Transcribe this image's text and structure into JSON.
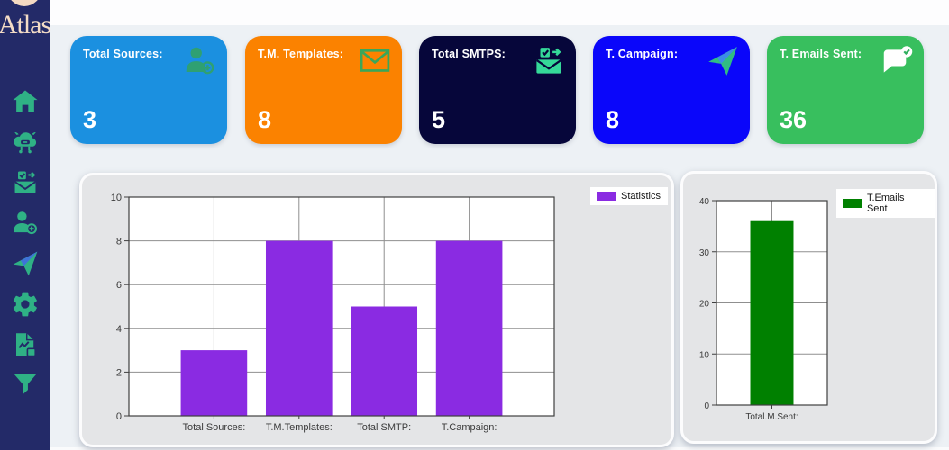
{
  "window": {
    "background": "#edf1f5",
    "topbar_color": "#fdfdfe"
  },
  "sidebar": {
    "brand": "Atlas",
    "background": "#232a68",
    "icon_color": "#2fb185",
    "items": [
      {
        "id": "home",
        "icon": "home-icon"
      },
      {
        "id": "bot",
        "icon": "bot-icon"
      },
      {
        "id": "mail-templates",
        "icon": "mail-check-icon"
      },
      {
        "id": "add-source",
        "icon": "user-add-icon"
      },
      {
        "id": "campaign",
        "icon": "paper-plane-icon"
      },
      {
        "id": "settings",
        "icon": "gear-icon"
      },
      {
        "id": "reports",
        "icon": "report-icon"
      },
      {
        "id": "filter",
        "icon": "funnel-icon"
      }
    ]
  },
  "cards": [
    {
      "label": "Total Sources:",
      "value": "3",
      "color": "#1b90e0",
      "icon": "user-add-icon"
    },
    {
      "label": "T.M. Templates:",
      "value": "8",
      "color": "#fb8200",
      "icon": "envelope-icon"
    },
    {
      "label": "Total SMTPS:",
      "value": "5",
      "color": "#06063a",
      "icon": "mail-check-icon"
    },
    {
      "label": "T. Campaign:",
      "value": "8",
      "color": "#0a06fa",
      "icon": "paper-plane-icon"
    },
    {
      "label": "T. Emails Sent:",
      "value": "36",
      "color": "#38bf5e",
      "icon": "chat-check-icon"
    }
  ],
  "chart_data": [
    {
      "type": "bar",
      "title": "",
      "categories": [
        "Total Sources:",
        "T.M.Templates:",
        "Total SMTP:",
        "T.Campaign:"
      ],
      "series": [
        {
          "name": "Statistics",
          "values": [
            3,
            8,
            5,
            8
          ],
          "color": "#8a2be2"
        }
      ],
      "xlabel": "",
      "ylabel": "",
      "ylim": [
        0,
        10
      ],
      "y_interval": 2,
      "grid": true,
      "legend_position": "top-right"
    },
    {
      "type": "bar",
      "title": "",
      "categories": [
        "Total.M.Sent:"
      ],
      "series": [
        {
          "name": "T.Emails Sent",
          "values": [
            36
          ],
          "color": "#008000"
        }
      ],
      "xlabel": "",
      "ylabel": "",
      "ylim": [
        0,
        40
      ],
      "y_interval": 10,
      "grid": true,
      "legend_position": "top-right"
    }
  ]
}
